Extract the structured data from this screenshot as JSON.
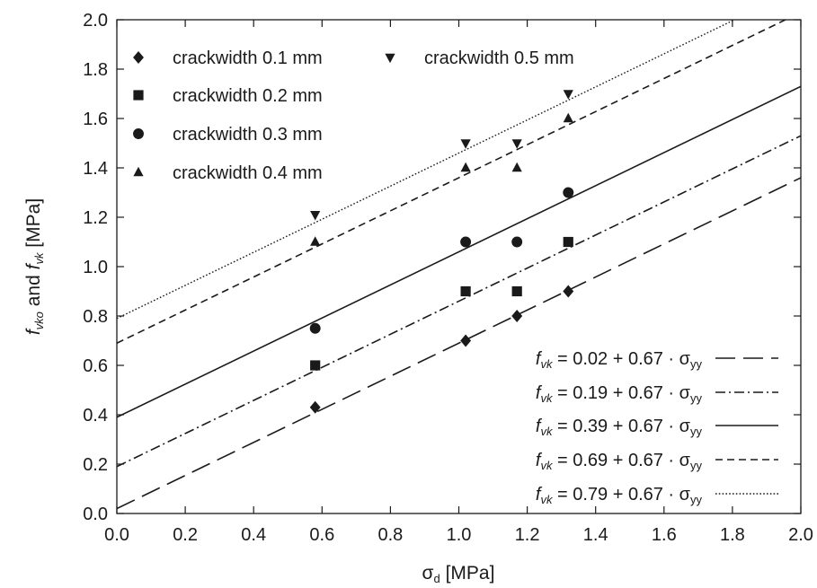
{
  "chart_data": {
    "type": "scatter",
    "title": "",
    "xlabel": {
      "base": "σ",
      "sub": "d",
      "unit": " [MPa]"
    },
    "ylabel": {
      "v1": "f",
      "v1_sub": "vko",
      "mid": " and ",
      "v2": "f",
      "v2_sub": "vk",
      "unit": " [MPa]"
    },
    "xlim": [
      0.0,
      2.0
    ],
    "ylim": [
      0.0,
      2.0
    ],
    "xticks": [
      "0.0",
      "0.2",
      "0.4",
      "0.6",
      "0.8",
      "1.0",
      "1.2",
      "1.4",
      "1.6",
      "1.8",
      "2.0"
    ],
    "yticks": [
      "0.0",
      "0.2",
      "0.4",
      "0.6",
      "0.8",
      "1.0",
      "1.2",
      "1.4",
      "1.6",
      "1.8",
      "2.0"
    ],
    "grid": false,
    "series": [
      {
        "name": "crackwidth 0.1 mm",
        "marker": "diamond",
        "points": [
          [
            0.58,
            0.43
          ],
          [
            1.02,
            0.7
          ],
          [
            1.17,
            0.8
          ],
          [
            1.32,
            0.9
          ]
        ]
      },
      {
        "name": "crackwidth 0.2 mm",
        "marker": "square",
        "points": [
          [
            0.58,
            0.6
          ],
          [
            1.02,
            0.9
          ],
          [
            1.17,
            0.9
          ],
          [
            1.32,
            1.1
          ]
        ]
      },
      {
        "name": "crackwidth 0.3 mm",
        "marker": "circle",
        "points": [
          [
            0.58,
            0.75
          ],
          [
            1.02,
            1.1
          ],
          [
            1.17,
            1.1
          ],
          [
            1.32,
            1.3
          ]
        ]
      },
      {
        "name": "crackwidth 0.4 mm",
        "marker": "triangle-up",
        "points": [
          [
            0.58,
            1.1
          ],
          [
            1.02,
            1.4
          ],
          [
            1.17,
            1.4
          ],
          [
            1.32,
            1.6
          ]
        ]
      },
      {
        "name": "crackwidth 0.5 mm",
        "marker": "triangle-down",
        "points": [
          [
            0.58,
            1.21
          ],
          [
            1.02,
            1.5
          ],
          [
            1.17,
            1.5
          ],
          [
            1.32,
            1.7
          ]
        ]
      }
    ],
    "fit_lines": [
      {
        "intercept": 0.02,
        "slope": 0.67,
        "dash": "longdash",
        "label": {
          "lhs": "f",
          "lhs_sub": "vk",
          "eq": " = 0.02 + 0.67 · ",
          "var": "σ",
          "var_sub": "yy"
        }
      },
      {
        "intercept": 0.19,
        "slope": 0.67,
        "dash": "dashdot",
        "label": {
          "lhs": "f",
          "lhs_sub": "vk",
          "eq": " = 0.19 + 0.67 · ",
          "var": "σ",
          "var_sub": "yy"
        }
      },
      {
        "intercept": 0.39,
        "slope": 0.67,
        "dash": "solid",
        "label": {
          "lhs": "f",
          "lhs_sub": "vk",
          "eq": " = 0.39 + 0.67 · ",
          "var": "σ",
          "var_sub": "yy"
        }
      },
      {
        "intercept": 0.69,
        "slope": 0.67,
        "dash": "shortdash",
        "label": {
          "lhs": "f",
          "lhs_sub": "vk",
          "eq": " = 0.69 + 0.67 · ",
          "var": "σ",
          "var_sub": "yy"
        }
      },
      {
        "intercept": 0.79,
        "slope": 0.67,
        "dash": "dotted",
        "label": {
          "lhs": "f",
          "lhs_sub": "vk",
          "eq": " = 0.79 + 0.67 · ",
          "var": "σ",
          "var_sub": "yy"
        }
      }
    ],
    "legend_placement": "top-left (markers), bottom-right (lines)",
    "colors": {
      "ink": "#1a1a1a",
      "background": "#ffffff"
    }
  }
}
